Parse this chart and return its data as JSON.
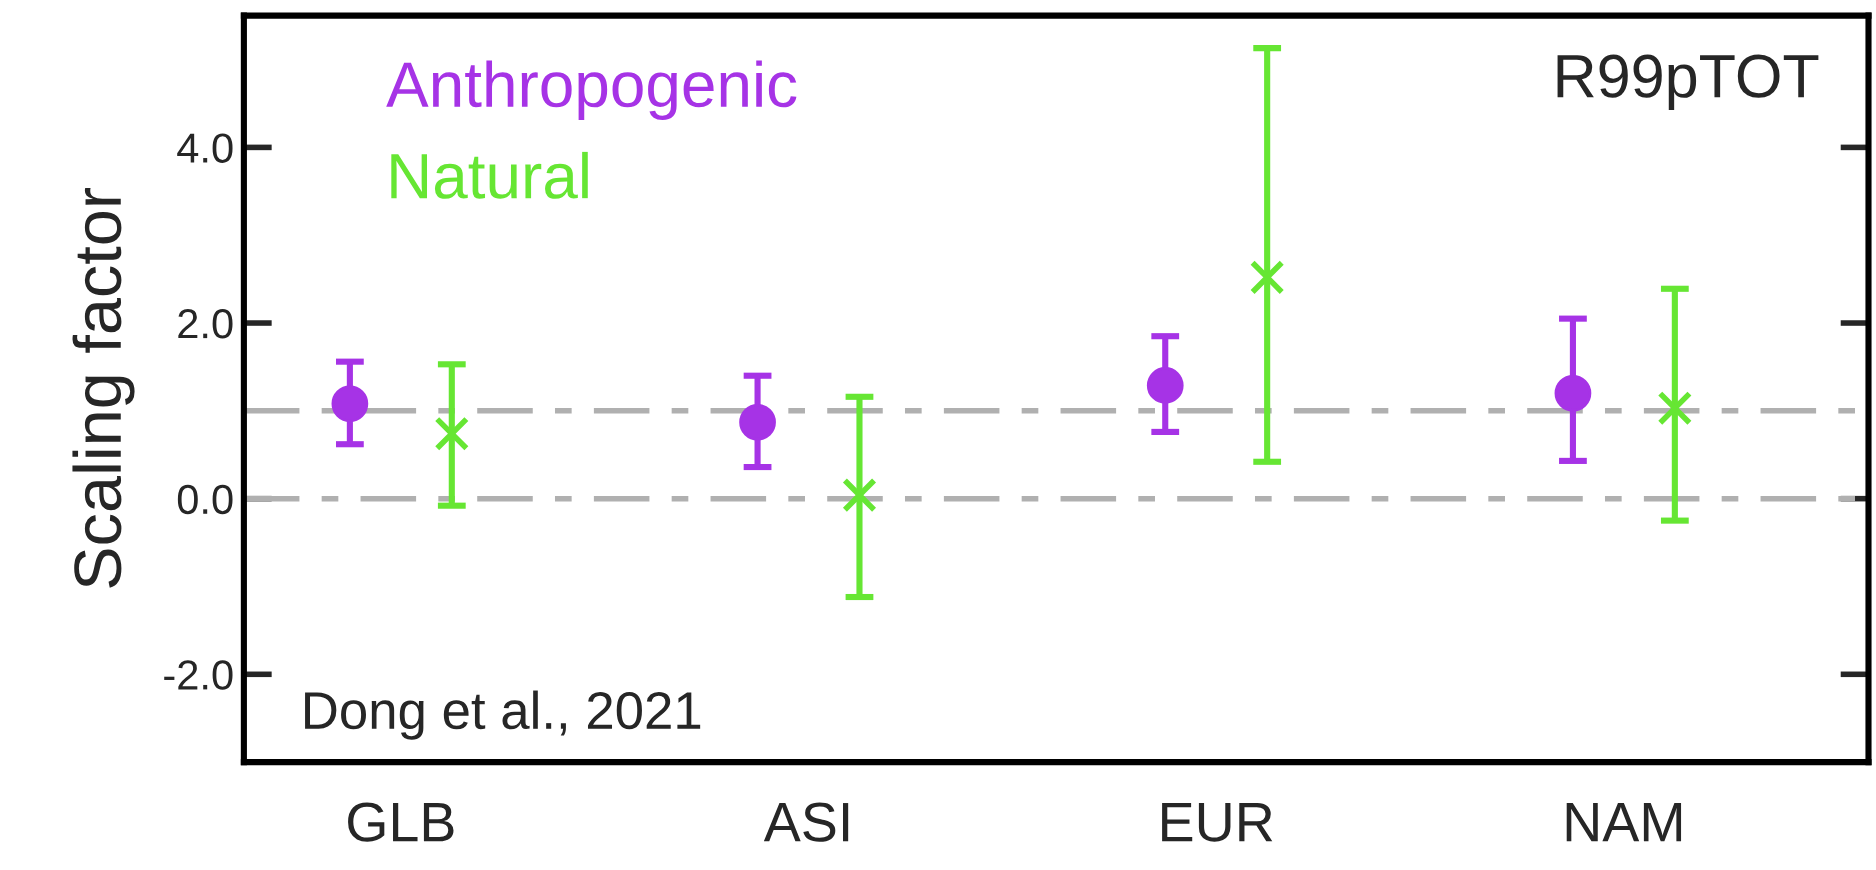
{
  "chart_data": {
    "type": "scatter",
    "title": "R99pTOT",
    "ylabel": "Scaling factor",
    "categories": [
      "GLB",
      "ASI",
      "EUR",
      "NAM"
    ],
    "series": [
      {
        "name": "Anthropogenic",
        "color": "#a633e6",
        "marker": "circle",
        "values": [
          1.08,
          0.87,
          1.29,
          1.2
        ],
        "errors": [
          [
            0.62,
            1.56
          ],
          [
            0.36,
            1.4
          ],
          [
            0.76,
            1.85
          ],
          [
            0.43,
            2.05
          ]
        ]
      },
      {
        "name": "Natural",
        "color": "#66e633",
        "marker": "cross",
        "values": [
          0.74,
          0.04,
          2.52,
          1.03
        ],
        "errors": [
          [
            -0.08,
            1.53
          ],
          [
            -1.12,
            1.16
          ],
          [
            0.42,
            5.13
          ],
          [
            -0.25,
            2.39
          ]
        ]
      }
    ],
    "ylim": [
      -3,
      5.5
    ],
    "yticks": [
      {
        "value": -2,
        "label": "-2.0"
      },
      {
        "value": 0,
        "label": "0.0"
      },
      {
        "value": 2,
        "label": "2.0"
      },
      {
        "value": 4,
        "label": "4.0"
      }
    ],
    "ref_lines": [
      {
        "axis": "y",
        "value": 1,
        "color": "#b0b0b0",
        "line_style": "dashdot"
      },
      {
        "axis": "y",
        "value": 0,
        "color": "#b0b0b0",
        "line_style": "dashdot"
      }
    ],
    "annotations": [
      "Dong et al., 2021"
    ],
    "legend": "top left",
    "grid": false
  }
}
